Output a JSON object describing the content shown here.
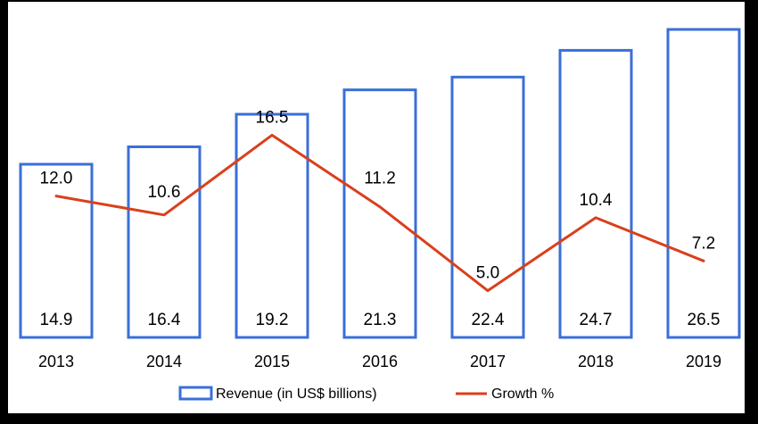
{
  "chart_data": {
    "type": "bar",
    "categories": [
      "2013",
      "2014",
      "2015",
      "2016",
      "2017",
      "2018",
      "2019"
    ],
    "series": [
      {
        "name": "Revenue (in US$ billions)",
        "type": "bar",
        "values": [
          14.9,
          16.4,
          19.2,
          21.3,
          22.4,
          24.7,
          26.5
        ],
        "labels": [
          "14.9",
          "16.4",
          "19.2",
          "21.3",
          "22.4",
          "24.7",
          "26.5"
        ],
        "color": "#3a6fd8"
      },
      {
        "name": "Growth %",
        "type": "line",
        "values": [
          12.0,
          10.6,
          16.5,
          11.2,
          5.0,
          10.4,
          7.2
        ],
        "labels": [
          "12.0",
          "10.6",
          "16.5",
          "11.2",
          "5.0",
          "10.4",
          "7.2"
        ],
        "color": "#d9401c"
      }
    ],
    "grid": false,
    "legend_position": "bottom",
    "bar_fill": "#ffffff"
  }
}
